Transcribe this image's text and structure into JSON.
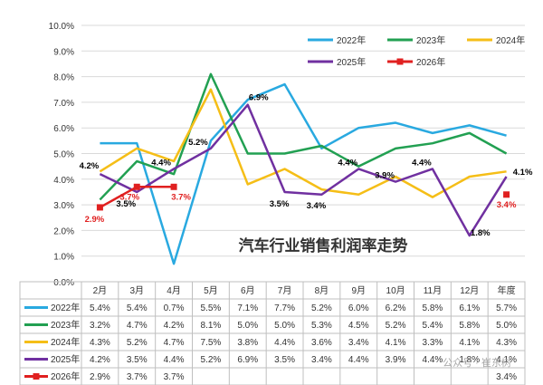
{
  "chart_data": {
    "type": "line",
    "title": "汽车行业销售利润率走势",
    "categories": [
      "2月",
      "3月",
      "4月",
      "5月",
      "6月",
      "7月",
      "8月",
      "9月",
      "10月",
      "11月",
      "12月",
      "年度"
    ],
    "ylim": [
      0,
      10
    ],
    "y_ticks": [
      "0.0%",
      "1.0%",
      "2.0%",
      "3.0%",
      "4.0%",
      "5.0%",
      "6.0%",
      "7.0%",
      "8.0%",
      "9.0%",
      "10.0%"
    ],
    "grid": true,
    "legend_position": "top-right",
    "series": [
      {
        "name": "2022年",
        "color": "#29A9E0",
        "marker": "none",
        "values": [
          5.4,
          5.4,
          0.7,
          5.5,
          7.1,
          7.7,
          5.2,
          6.0,
          6.2,
          5.8,
          6.1,
          5.7
        ],
        "table": [
          "5.4%",
          "5.4%",
          "0.7%",
          "5.5%",
          "7.1%",
          "7.7%",
          "5.2%",
          "6.0%",
          "6.2%",
          "5.8%",
          "6.1%",
          "5.7%"
        ]
      },
      {
        "name": "2023年",
        "color": "#22A052",
        "marker": "none",
        "values": [
          3.2,
          4.7,
          4.2,
          8.1,
          5.0,
          5.0,
          5.3,
          4.5,
          5.2,
          5.4,
          5.8,
          5.0
        ],
        "table": [
          "3.2%",
          "4.7%",
          "4.2%",
          "8.1%",
          "5.0%",
          "5.0%",
          "5.3%",
          "4.5%",
          "5.2%",
          "5.4%",
          "5.8%",
          "5.0%"
        ]
      },
      {
        "name": "2024年",
        "color": "#F5BE17",
        "marker": "none",
        "values": [
          4.3,
          5.2,
          4.7,
          7.5,
          3.8,
          4.4,
          3.6,
          3.4,
          4.1,
          3.3,
          4.1,
          4.3
        ],
        "table": [
          "4.3%",
          "5.2%",
          "4.7%",
          "7.5%",
          "3.8%",
          "4.4%",
          "3.6%",
          "3.4%",
          "4.1%",
          "3.3%",
          "4.1%",
          "4.3%"
        ]
      },
      {
        "name": "2025年",
        "color": "#7030A0",
        "marker": "none",
        "values": [
          4.2,
          3.5,
          4.4,
          5.2,
          6.9,
          3.5,
          3.4,
          4.4,
          3.9,
          4.4,
          1.8,
          4.1
        ],
        "table": [
          "4.2%",
          "3.5%",
          "4.4%",
          "5.2%",
          "6.9%",
          "3.5%",
          "3.4%",
          "4.4%",
          "3.9%",
          "4.4%",
          "1.8%",
          "4.1%"
        ]
      },
      {
        "name": "2026年",
        "color": "#E02020",
        "marker": "square",
        "values": [
          2.9,
          3.7,
          3.7,
          null,
          null,
          null,
          null,
          null,
          null,
          null,
          null,
          3.4
        ],
        "table": [
          "2.9%",
          "3.7%",
          "3.7%",
          "",
          "",
          "",
          "",
          "",
          "",
          "",
          "",
          "3.4%"
        ]
      }
    ],
    "annotations": [
      {
        "text": "4.2%",
        "series": "2025年",
        "index": 0,
        "color": "#000000"
      },
      {
        "text": "3.5%",
        "series": "2025年",
        "index": 1,
        "color": "#000000"
      },
      {
        "text": "4.4%",
        "series": "2025年",
        "index": 2,
        "color": "#000000"
      },
      {
        "text": "5.2%",
        "series": "2025年",
        "index": 3,
        "color": "#000000"
      },
      {
        "text": "6.9%",
        "series": "2025年",
        "index": 4,
        "color": "#000000"
      },
      {
        "text": "3.5%",
        "series": "2025年",
        "index": 5,
        "color": "#000000"
      },
      {
        "text": "3.4%",
        "series": "2025年",
        "index": 6,
        "color": "#000000"
      },
      {
        "text": "4.4%",
        "series": "2025年",
        "index": 7,
        "color": "#000000"
      },
      {
        "text": "3.9%",
        "series": "2025年",
        "index": 8,
        "color": "#000000"
      },
      {
        "text": "4.4%",
        "series": "2025年",
        "index": 9,
        "color": "#000000"
      },
      {
        "text": "1.8%",
        "series": "2025年",
        "index": 10,
        "color": "#000000"
      },
      {
        "text": "4.1%",
        "series": "2025年",
        "index": 11,
        "color": "#000000"
      },
      {
        "text": "2.9%",
        "series": "2026年",
        "index": 0,
        "color": "#E02020"
      },
      {
        "text": "3.7%",
        "series": "2026年",
        "index": 1,
        "color": "#E02020"
      },
      {
        "text": "3.7%",
        "series": "2026年",
        "index": 2,
        "color": "#E02020"
      },
      {
        "text": "3.4%",
        "series": "2026年",
        "index": 11,
        "color": "#E02020"
      }
    ],
    "watermark": "公众号 · 崔东树"
  }
}
